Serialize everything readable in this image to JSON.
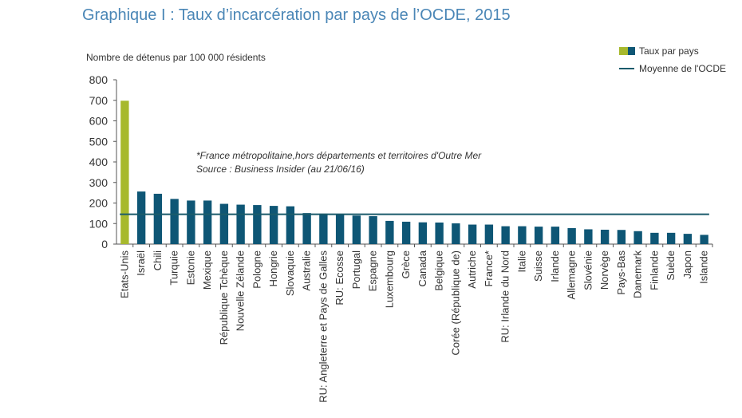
{
  "title": "Graphique I : Taux d’incarcération par pays de l’OCDE, 2015",
  "colors": {
    "highlight": "#a7b92d",
    "bar": "#0e5675",
    "average_line": "#1b5b6b",
    "title": "#4a86b6",
    "axis": "#555555"
  },
  "chart_data": {
    "type": "bar",
    "ylabel": "Nombre de détenus par 100 000 résidents",
    "ylim": [
      0,
      800
    ],
    "yticks": [
      0,
      100,
      200,
      300,
      400,
      500,
      600,
      700,
      800
    ],
    "grid": false,
    "legend_position": "top-right",
    "legend": {
      "bars": "Taux par pays",
      "line": "Moyenne de l'OCDE"
    },
    "average": 145,
    "highlight_category": "Etats-Unis",
    "categories": [
      "Etats-Unis",
      "Israël",
      "Chili",
      "Turquie",
      "Estonie",
      "Mexique",
      "République Tchèque",
      "Nouvelle Zélande",
      "Pologne",
      "Hongrie",
      "Slovaquie",
      "Australie",
      "RU: Angleterre et Pays de Galles",
      "RU: Ecosse",
      "Portugal",
      "Espagne",
      "Luxembourg",
      "Grèce",
      "Canada",
      "Belgique",
      "Corée (République de)",
      "Autriche",
      "France*",
      "RU: Irlande du Nord",
      "Italie",
      "Suisse",
      "Irlande",
      "Allemagne",
      "Slovénie",
      "Norvège",
      "Pays-Bas",
      "Danemark",
      "Finlande",
      "Suède",
      "Japon",
      "Islande"
    ],
    "values": [
      698,
      256,
      245,
      220,
      212,
      212,
      196,
      192,
      190,
      186,
      184,
      151,
      148,
      142,
      139,
      136,
      113,
      109,
      106,
      105,
      101,
      95,
      95,
      87,
      87,
      85,
      85,
      78,
      72,
      70,
      69,
      63,
      55,
      55,
      50,
      45
    ],
    "annotations": [
      "*France métropolitaine,hors départements et territoires d'Outre Mer",
      "Source : Business Insider (au 21/06/16)"
    ]
  }
}
